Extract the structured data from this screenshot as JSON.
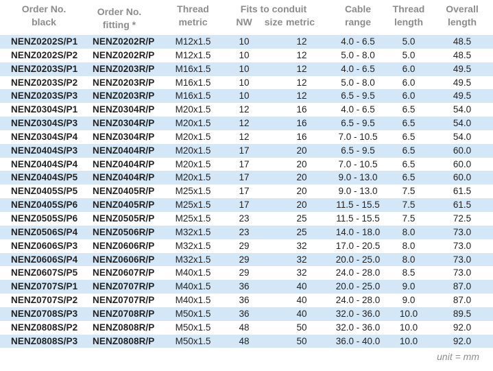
{
  "headers": {
    "order_black_1": "Order No.",
    "order_black_2": "black",
    "order_fitting_1": "Order No.",
    "order_fitting_2": "fitting *",
    "thread_1": "Thread",
    "thread_2": "metric",
    "fits_1": "Fits to conduit size",
    "fits_nw": "NW",
    "fits_metric": "metric",
    "cable_1": "Cable",
    "cable_2": "range",
    "tlen_1": "Thread",
    "tlen_2": "length",
    "overall_1": "Overall",
    "overall_2": "length"
  },
  "rows": [
    [
      "NENZ0202S/P1",
      "NENZ0202R/P",
      "M12x1.5",
      "10",
      "12",
      "4.0 - 6.5",
      "5.0",
      "48.5"
    ],
    [
      "NENZ0202S/P2",
      "NENZ0202R/P",
      "M12x1.5",
      "10",
      "12",
      "5.0 - 8.0",
      "5.0",
      "48.5"
    ],
    [
      "NENZ0203S/P1",
      "NENZ0203R/P",
      "M16x1.5",
      "10",
      "12",
      "4.0 - 6.5",
      "6.0",
      "49.5"
    ],
    [
      "NENZ0203S/P2",
      "NENZ0203R/P",
      "M16x1.5",
      "10",
      "12",
      "5.0 - 8.0",
      "6.0",
      "49.5"
    ],
    [
      "NENZ0203S/P3",
      "NENZ0203R/P",
      "M16x1.5",
      "10",
      "12",
      "6.5 - 9.5",
      "6.0",
      "49.5"
    ],
    [
      "NENZ0304S/P1",
      "NENZ0304R/P",
      "M20x1.5",
      "12",
      "16",
      "4.0 - 6.5",
      "6.5",
      "54.0"
    ],
    [
      "NENZ0304S/P3",
      "NENZ0304R/P",
      "M20x1.5",
      "12",
      "16",
      "6.5 - 9.5",
      "6.5",
      "54.0"
    ],
    [
      "NENZ0304S/P4",
      "NENZ0304R/P",
      "M20x1.5",
      "12",
      "16",
      "7.0 - 10.5",
      "6.5",
      "54.0"
    ],
    [
      "NENZ0404S/P3",
      "NENZ0404R/P",
      "M20x1.5",
      "17",
      "20",
      "6.5 - 9.5",
      "6.5",
      "60.0"
    ],
    [
      "NENZ0404S/P4",
      "NENZ0404R/P",
      "M20x1.5",
      "17",
      "20",
      "7.0 - 10.5",
      "6.5",
      "60.0"
    ],
    [
      "NENZ0404S/P5",
      "NENZ0404R/P",
      "M20x1.5",
      "17",
      "20",
      "9.0 - 13.0",
      "6.5",
      "60.0"
    ],
    [
      "NENZ0405S/P5",
      "NENZ0405R/P",
      "M25x1.5",
      "17",
      "20",
      "9.0 - 13.0",
      "7.5",
      "61.5"
    ],
    [
      "NENZ0405S/P6",
      "NENZ0405R/P",
      "M25x1.5",
      "17",
      "20",
      "11.5 - 15.5",
      "7.5",
      "61.5"
    ],
    [
      "NENZ0505S/P6",
      "NENZ0505R/P",
      "M25x1.5",
      "23",
      "25",
      "11.5 - 15.5",
      "7.5",
      "72.5"
    ],
    [
      "NENZ0506S/P4",
      "NENZ0506R/P",
      "M32x1.5",
      "23",
      "25",
      "14.0 - 18.0",
      "8.0",
      "73.0"
    ],
    [
      "NENZ0606S/P3",
      "NENZ0606R/P",
      "M32x1.5",
      "29",
      "32",
      "17.0 - 20.5",
      "8.0",
      "73.0"
    ],
    [
      "NENZ0606S/P4",
      "NENZ0606R/P",
      "M32x1.5",
      "29",
      "32",
      "20.0 - 25.0",
      "8.0",
      "73.0"
    ],
    [
      "NENZ0607S/P5",
      "NENZ0607R/P",
      "M40x1.5",
      "29",
      "32",
      "24.0 - 28.0",
      "8.5",
      "73.0"
    ],
    [
      "NENZ0707S/P1",
      "NENZ0707R/P",
      "M40x1.5",
      "36",
      "40",
      "20.0 - 25.0",
      "9.0",
      "87.0"
    ],
    [
      "NENZ0707S/P2",
      "NENZ0707R/P",
      "M40x1.5",
      "36",
      "40",
      "24.0 - 28.0",
      "9.0",
      "87.0"
    ],
    [
      "NENZ0708S/P3",
      "NENZ0708R/P",
      "M50x1.5",
      "36",
      "40",
      "32.0 - 36.0",
      "10.0",
      "89.5"
    ],
    [
      "NENZ0808S/P2",
      "NENZ0808R/P",
      "M50x1.5",
      "48",
      "50",
      "32.0 - 36.0",
      "10.0",
      "92.0"
    ],
    [
      "NENZ0808S/P3",
      "NENZ0808R/P",
      "M50x1.5",
      "48",
      "50",
      "36.0 - 40.0",
      "10.0",
      "92.0"
    ]
  ],
  "unit_note": "unit = mm",
  "colors": {
    "shaded_row": "#d3e7f6",
    "header_text": "#8a8c8e"
  }
}
